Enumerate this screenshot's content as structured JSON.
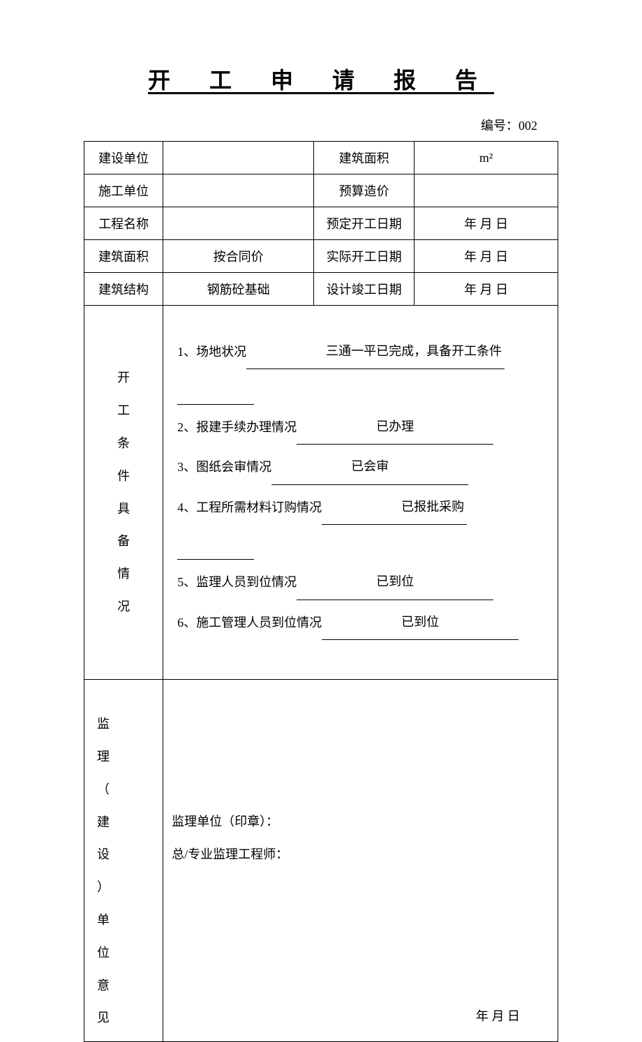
{
  "document": {
    "title": "开 工 申 请 报 告",
    "number_label": "编号：",
    "number_value": "002"
  },
  "header_rows": [
    {
      "l1": "建设单位",
      "v1": "",
      "l2": "建筑面积",
      "v2": "m²"
    },
    {
      "l1": "施工单位",
      "v1": "",
      "l2": "预算造价",
      "v2": ""
    },
    {
      "l1": "工程名称",
      "v1": "",
      "l2": "预定开工日期",
      "v2": "年  月  日"
    },
    {
      "l1": "建筑面积",
      "v1": "按合同价",
      "l2": "实际开工日期",
      "v2": "年  月  日"
    },
    {
      "l1": "建筑结构",
      "v1": "钢筋砼基础",
      "l2": "设计竣工日期",
      "v2": "年  月  日"
    }
  ],
  "conditions": {
    "section_label": "开工条件具备情况",
    "items": [
      {
        "idx": "1、",
        "label": "场地状况",
        "value": "三通一平已完成，具备开工条件"
      },
      {
        "idx": "2、",
        "label": "报建手续办理情况",
        "value": "已办理"
      },
      {
        "idx": "3、",
        "label": "图纸会审情况",
        "value": "已会审"
      },
      {
        "idx": "4、",
        "label": "工程所需材料订购情况",
        "value": "已报批采购"
      },
      {
        "idx": "5、",
        "label": "监理人员到位情况",
        "value": "已到位"
      },
      {
        "idx": "6、",
        "label": "施工管理人员到位情况",
        "value": "已到位"
      }
    ]
  },
  "opinion": {
    "section_label": "监理（建设）单位意见",
    "line1": "监理单位（印章）：",
    "line2": "总/专业监理工程师：",
    "date_text": "年  月  日"
  },
  "style": {
    "background_color": "#ffffff",
    "border_color": "#000000",
    "text_color": "#000000",
    "title_fontsize": 32,
    "body_fontsize": 18,
    "font_family": "SimSun"
  }
}
